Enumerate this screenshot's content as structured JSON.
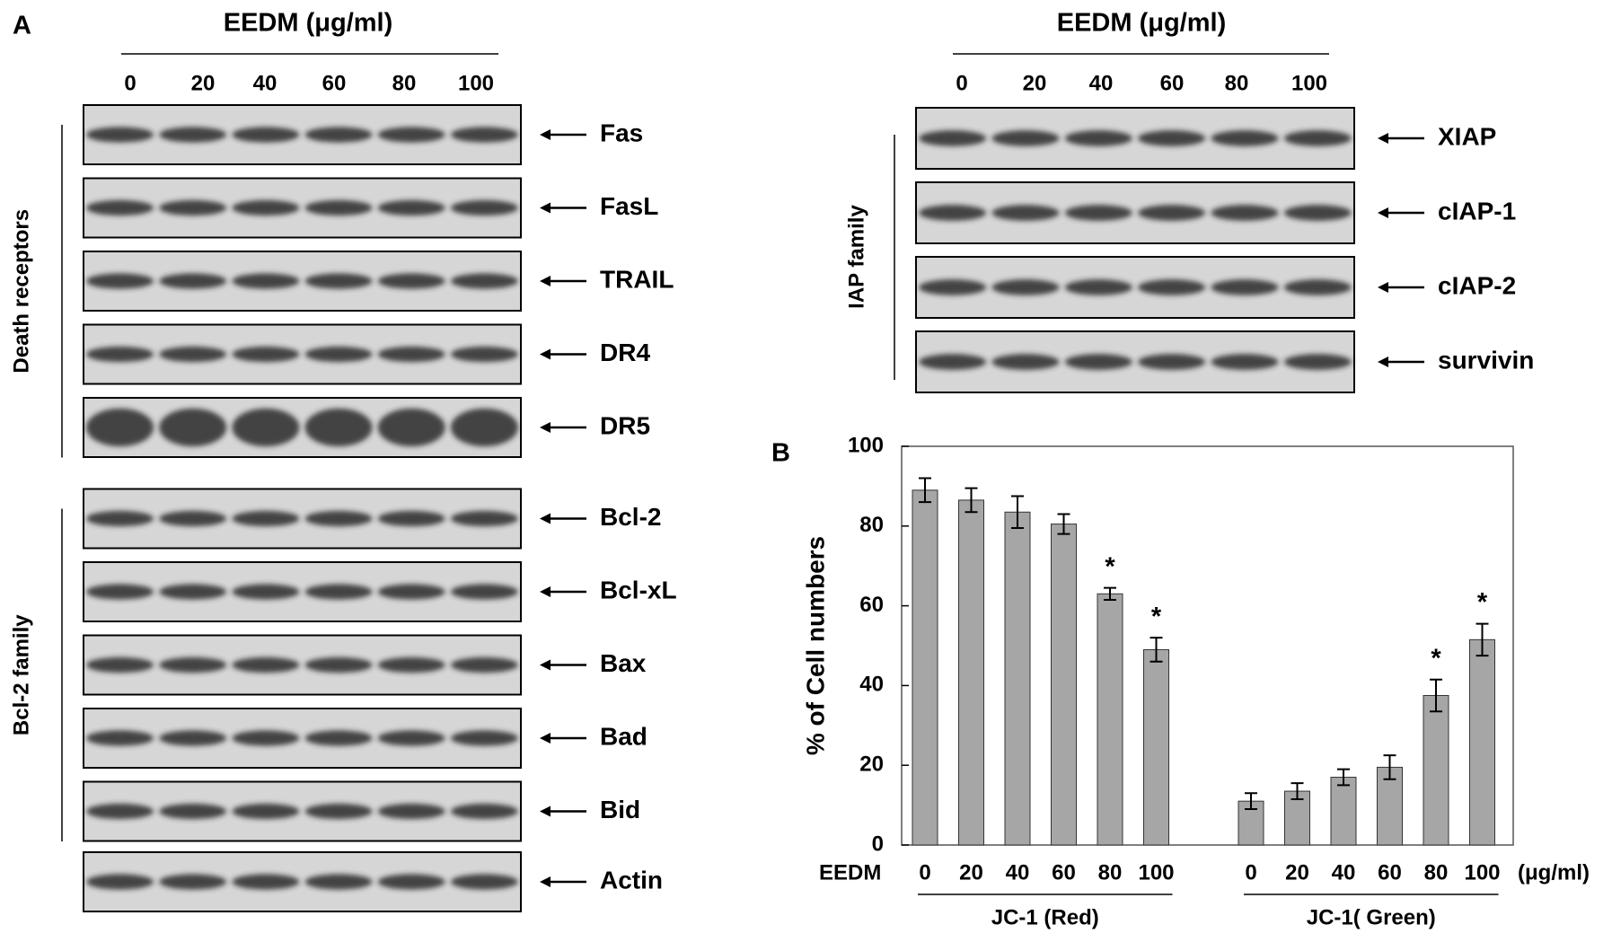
{
  "panel_a": {
    "label": "A",
    "left": {
      "treatment": "EEDM (μg/ml)",
      "doses": [
        "0",
        "20",
        "40",
        "60",
        "80",
        "100"
      ],
      "groups": [
        {
          "name": "Death receptors",
          "proteins": [
            "Fas",
            "FasL",
            "TRAIL",
            "DR4",
            "DR5"
          ]
        },
        {
          "name": "Bcl-2 family",
          "proteins": [
            "Bcl-2",
            "Bcl-xL",
            "Bax",
            "Bad",
            "Bid"
          ]
        }
      ],
      "control": "Actin"
    },
    "right": {
      "treatment": "EEDM (μg/ml)",
      "doses": [
        "0",
        "20",
        "40",
        "60",
        "80",
        "100"
      ],
      "group": "IAP family",
      "proteins": [
        "XIAP",
        "cIAP-1",
        "cIAP-2",
        "survivin"
      ]
    }
  },
  "chart_data": {
    "type": "bar",
    "label": "B",
    "ylabel": "% of Cell numbers",
    "x_label": "EEDM",
    "unit": "(μg/ml)",
    "categories": [
      "0",
      "20",
      "40",
      "60",
      "80",
      "100"
    ],
    "groups": [
      {
        "name": "JC-1 (Red)",
        "values": [
          89,
          86.5,
          83.5,
          80.5,
          63,
          49
        ],
        "errors": [
          3,
          3,
          4,
          2.5,
          1.5,
          3
        ],
        "significance": [
          null,
          null,
          null,
          null,
          "*",
          "*"
        ]
      },
      {
        "name": "JC-1( Green)",
        "values": [
          11,
          13.5,
          17,
          19.5,
          37.5,
          51.5
        ],
        "errors": [
          2,
          2,
          2,
          3,
          4,
          4
        ],
        "significance": [
          null,
          null,
          null,
          null,
          "*",
          "*"
        ]
      }
    ],
    "color": "#a6a6a6",
    "ylim": [
      0,
      100
    ],
    "yticks": [
      0,
      20,
      40,
      60,
      80,
      100
    ]
  }
}
